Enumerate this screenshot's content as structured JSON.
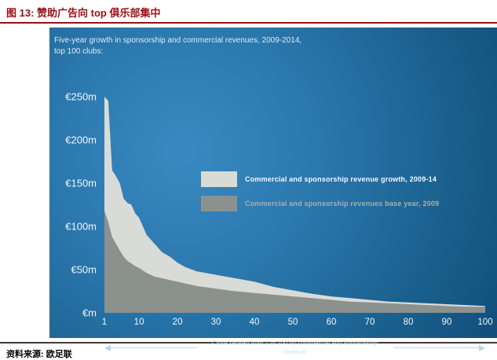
{
  "report": {
    "figure_title": "图 13: 赞助广告向 top 俱乐部集中",
    "source_label": "资料来源: 欧足联"
  },
  "colors": {
    "title_red": "#9b1014",
    "panel_blue_light": "#3a89c2",
    "panel_blue_dark": "#114e7c",
    "area_growth_light": "#d9dbd6",
    "area_base_dark": "#8b918d",
    "legend_text_secondary": "#a9b0ac",
    "axis_text": "#f0f6fa"
  },
  "chart_data": {
    "type": "area",
    "stacked": true,
    "title": "Five-year growth in sponsorship and commercial revenues, 2009-2014, top 100 clubs:",
    "x": [
      1,
      2,
      3,
      4,
      5,
      6,
      7,
      8,
      9,
      10,
      12,
      14,
      16,
      18,
      20,
      22,
      25,
      30,
      35,
      40,
      45,
      50,
      55,
      60,
      65,
      70,
      75,
      80,
      85,
      90,
      95,
      100
    ],
    "series": [
      {
        "name": "Commercial and sponsorship revenue growth, 2009-14",
        "color": "#d9dbd6",
        "values": [
          132,
          140,
          77,
          78,
          78,
          67,
          67,
          68,
          61,
          58,
          44,
          38,
          30,
          27,
          22,
          19,
          17,
          16,
          15,
          13,
          9,
          7,
          5,
          4,
          4,
          3,
          2,
          2,
          2,
          2,
          2,
          1
        ]
      },
      {
        "name": "Commercial and sponsorship revenues base year, 2009",
        "color": "#8b918d",
        "values": [
          118,
          105,
          88,
          80,
          72,
          65,
          60,
          57,
          54,
          52,
          46,
          42,
          40,
          38,
          36,
          34,
          31,
          28,
          25,
          23,
          21,
          19,
          17,
          15,
          13,
          12,
          11,
          10,
          9,
          8,
          7,
          7
        ]
      }
    ],
    "xlim": [
      1,
      100
    ],
    "ylim": [
      0,
      250
    ],
    "y_ticks": [
      {
        "label": "€250m",
        "value": 250
      },
      {
        "label": "€200m",
        "value": 200
      },
      {
        "label": "€150m",
        "value": 150
      },
      {
        "label": "€100m",
        "value": 100
      },
      {
        "label": "€50m",
        "value": 50
      },
      {
        "label": "€m",
        "value": 0
      }
    ],
    "x_ticks": [
      1,
      10,
      20,
      30,
      40,
      50,
      60,
      70,
      80,
      90,
      100
    ],
    "xlabel_caption": "Clubs ranked from 1 to 100 by commercial and sponsorship revenue",
    "legend_position": "inside-left",
    "grid": false
  }
}
